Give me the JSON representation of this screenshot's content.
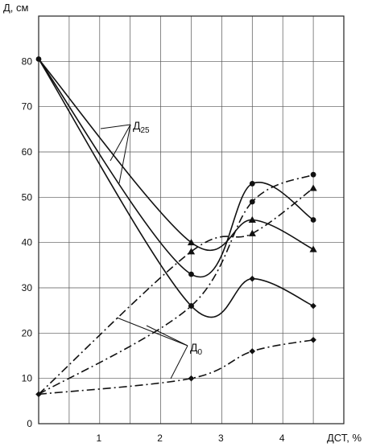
{
  "chart_data": {
    "type": "line",
    "title": "",
    "xlabel": "ДСТ, %",
    "ylabel": "Д, см",
    "xlim": [
      0,
      5
    ],
    "ylim": [
      0,
      90
    ],
    "grid": true,
    "x_ticks": [
      1,
      2,
      3,
      4
    ],
    "y_ticks": [
      0,
      10,
      20,
      30,
      40,
      50,
      60,
      70,
      80
    ],
    "series": [
      {
        "style": "solid",
        "marker": "circle",
        "x": [
          0,
          2.5,
          3.5,
          4.5
        ],
        "y": [
          80.5,
          33,
          53,
          45
        ]
      },
      {
        "style": "solid",
        "marker": "triangle",
        "x": [
          0,
          2.5,
          3.5,
          4.5
        ],
        "y": [
          80.5,
          40,
          45,
          38.5
        ]
      },
      {
        "style": "solid",
        "marker": "diamond",
        "x": [
          0,
          2.5,
          3.5,
          4.5
        ],
        "y": [
          80.5,
          26,
          32,
          26
        ]
      },
      {
        "style": "dashed",
        "marker": "circle",
        "x": [
          0,
          2.5,
          3.5,
          4.5
        ],
        "y": [
          6.5,
          26,
          49,
          55
        ]
      },
      {
        "style": "dashed",
        "marker": "triangle",
        "x": [
          0,
          2.5,
          3.5,
          4.5
        ],
        "y": [
          6.5,
          38,
          42,
          52
        ]
      },
      {
        "style": "dashed",
        "marker": "diamond",
        "x": [
          0,
          2.5,
          3.5,
          4.5
        ],
        "y": [
          6.5,
          10,
          16,
          18.5
        ]
      }
    ],
    "annotations": [
      {
        "main": "Д",
        "sub": "25"
      },
      {
        "main": "Д",
        "sub": "0"
      }
    ]
  }
}
